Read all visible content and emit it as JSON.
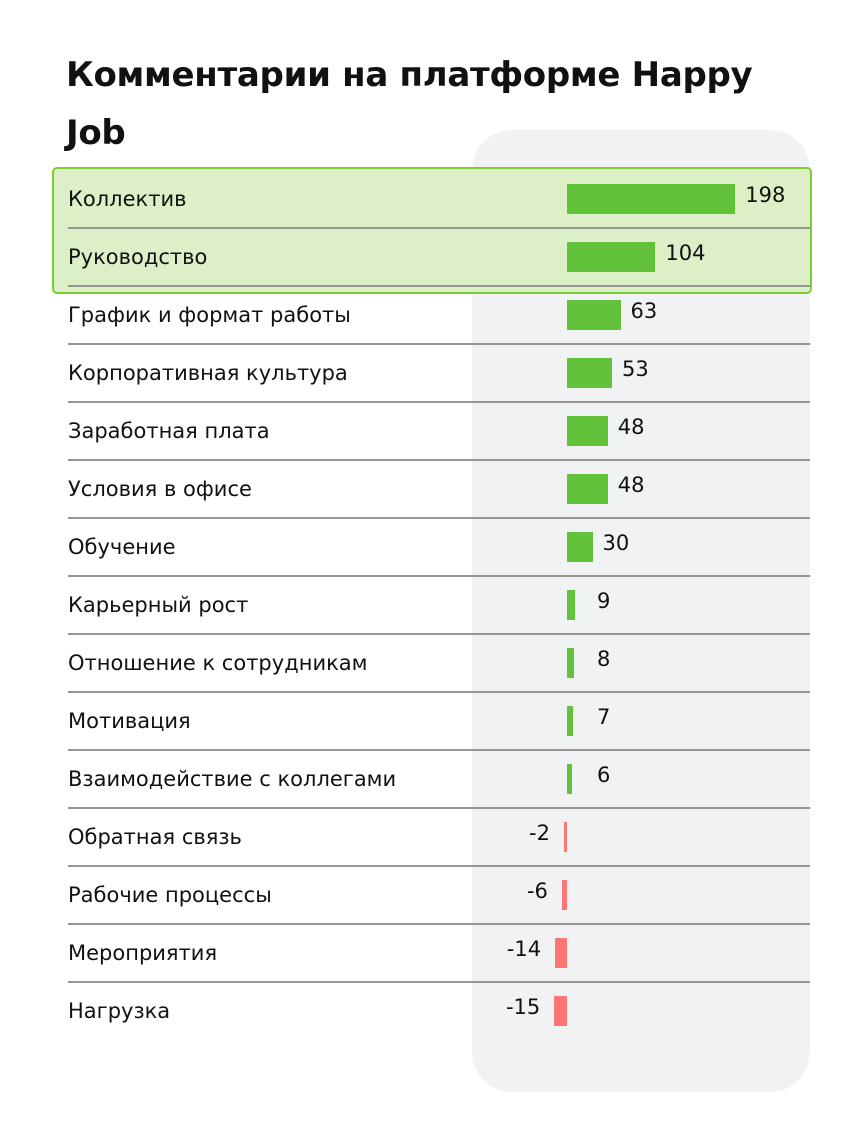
{
  "chart_data": {
    "type": "bar",
    "orientation": "horizontal",
    "title": "Комментарии на платформе Happy Job",
    "categories": [
      "Коллектив",
      "Руководство",
      "График и формат работы",
      "Корпоративная культура",
      "Заработная плата",
      "Условия в офисе",
      "Обучение",
      "Карьерный рост",
      "Отношение к сотрудникам",
      "Мотивация",
      "Взаимодействие с коллегами",
      "Обратная связь",
      "Рабочие процессы",
      "Мероприятия",
      "Нагрузка"
    ],
    "values": [
      198,
      104,
      63,
      53,
      48,
      48,
      30,
      9,
      8,
      7,
      6,
      -2,
      -6,
      -14,
      -15
    ],
    "highlighted": [
      "Коллектив",
      "Руководство"
    ],
    "colors": {
      "positive": "#62c23a",
      "negative": "#ff7573",
      "highlight_fill": "#dcefc6",
      "highlight_border": "#7acc2f"
    },
    "grid": false
  }
}
